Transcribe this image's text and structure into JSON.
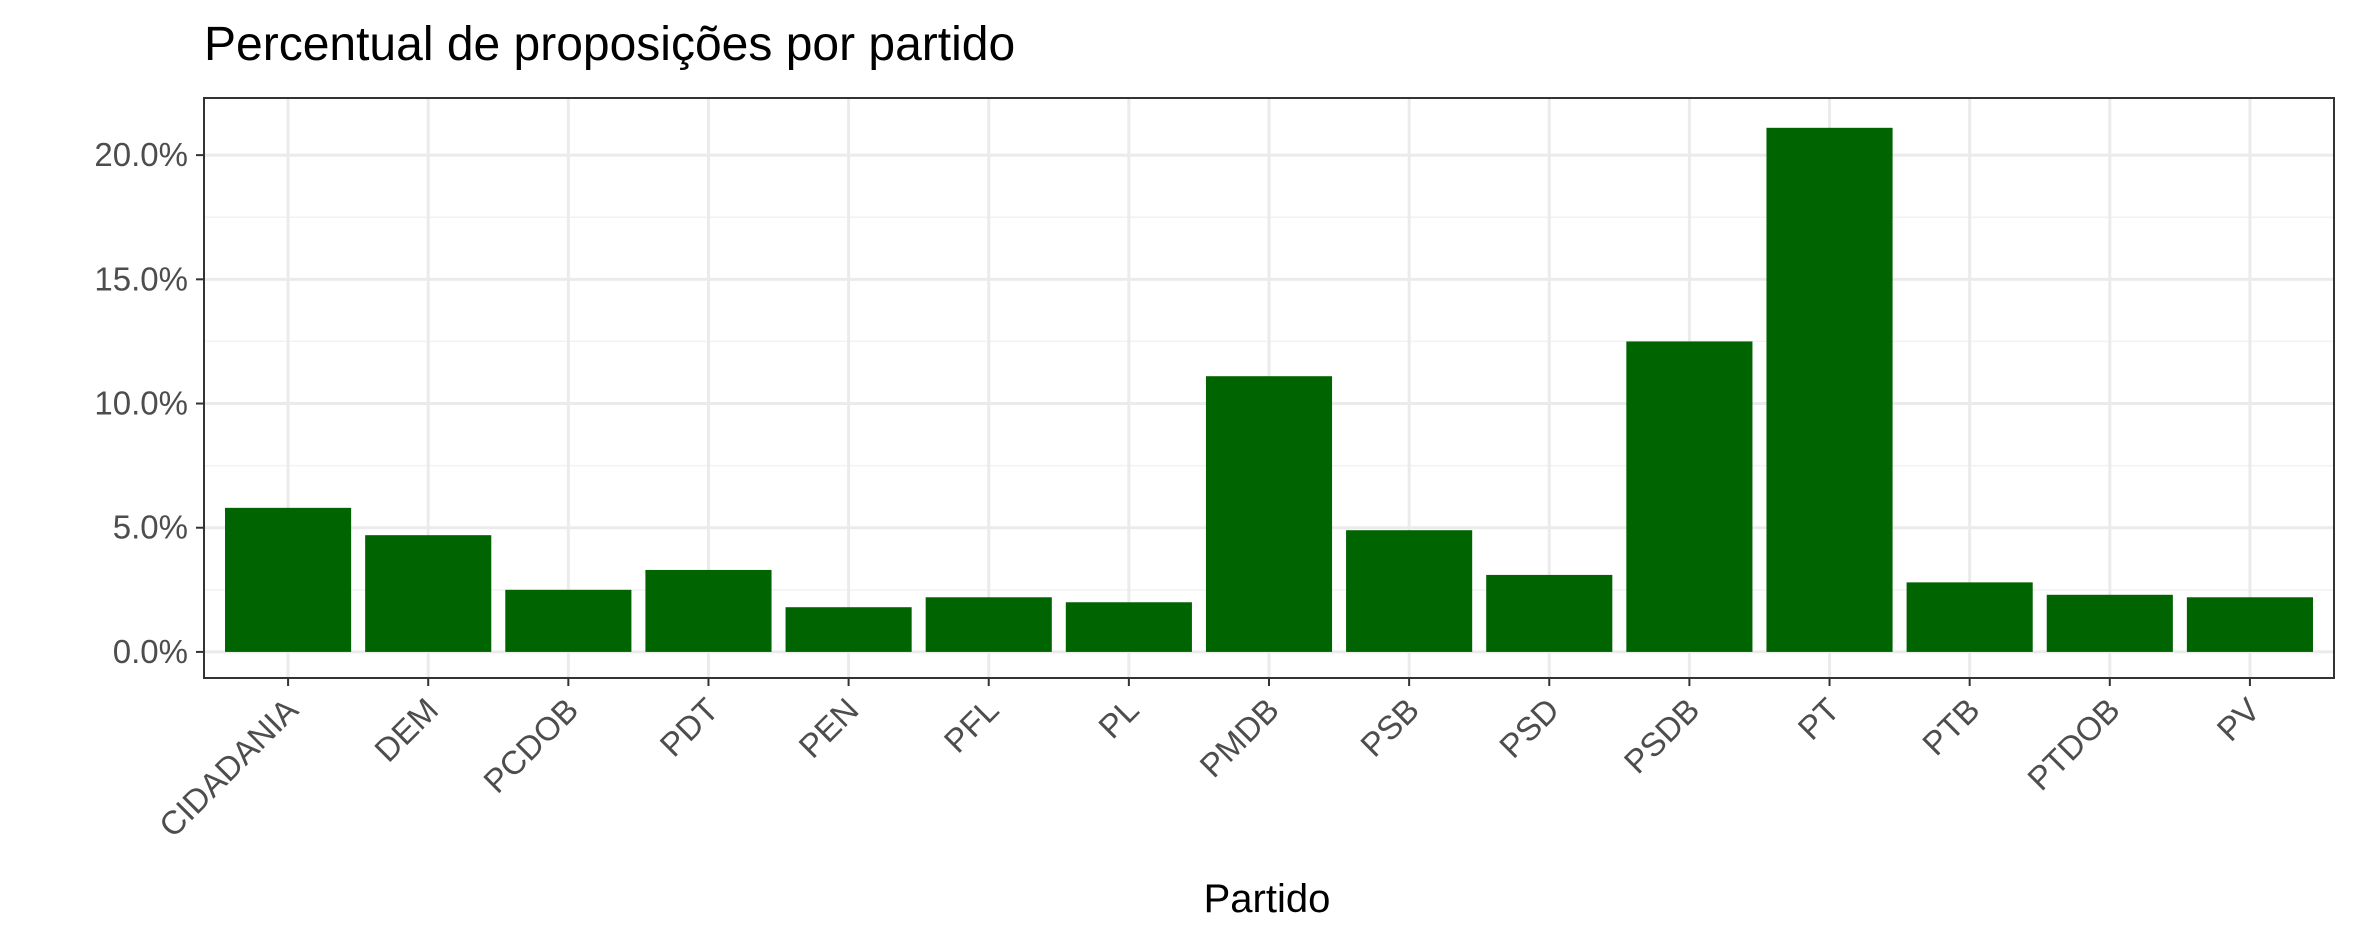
{
  "chart_data": {
    "type": "bar",
    "title": "Percentual de proposições por partido",
    "xlabel": "Partido",
    "ylabel": "",
    "categories": [
      "CIDADANIA",
      "DEM",
      "PCDOB",
      "PDT",
      "PEN",
      "PFL",
      "PL",
      "PMDB",
      "PSB",
      "PSD",
      "PSDB",
      "PT",
      "PTB",
      "PTDOB",
      "PV"
    ],
    "values": [
      5.8,
      4.7,
      2.5,
      3.3,
      1.8,
      2.2,
      2.0,
      11.1,
      4.9,
      3.1,
      12.5,
      21.1,
      2.8,
      2.3,
      2.2
    ],
    "y_ticks": [
      {
        "value": 0,
        "label": "0.0%"
      },
      {
        "value": 5,
        "label": "5.0%"
      },
      {
        "value": 10,
        "label": "10.0%"
      },
      {
        "value": 15,
        "label": "15.0%"
      },
      {
        "value": 20,
        "label": "20.0%"
      }
    ],
    "ylim": [
      -1.05,
      22.3
    ],
    "grid": true,
    "bar_color": "#006400"
  }
}
